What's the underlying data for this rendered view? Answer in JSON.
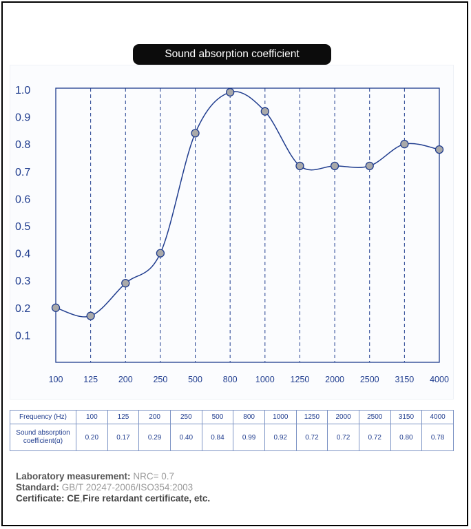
{
  "chart_data": {
    "type": "line",
    "title": "Sound absorption coefficient",
    "categories": [
      "100",
      "125",
      "200",
      "250",
      "500",
      "800",
      "1000",
      "1250",
      "2000",
      "2500",
      "3150",
      "4000"
    ],
    "values": [
      0.2,
      0.17,
      0.29,
      0.4,
      0.84,
      0.99,
      0.92,
      0.72,
      0.72,
      0.72,
      0.8,
      0.78
    ],
    "y_ticks": [
      "0.1",
      "0.2",
      "0.3",
      "0.4",
      "0.5",
      "0.6",
      "0.7",
      "0.8",
      "0.9",
      "1.0"
    ],
    "ylim": [
      0,
      1.0
    ],
    "xlabel": "",
    "ylabel": "",
    "grid": "vertical dashed",
    "colors": {
      "line": "#1f3c8e",
      "marker_fill": "#a9a9a9",
      "marker_stroke": "#1f3c8e",
      "title_bg": "#0c0c0c"
    }
  },
  "table": {
    "row1_header": "Frequency (Hz)",
    "row2_header_line1": "Sound absorption",
    "row2_header_line2": "coefficient(α)",
    "frequencies": [
      "100",
      "125",
      "200",
      "250",
      "500",
      "800",
      "1000",
      "1250",
      "2000",
      "2500",
      "3150",
      "4000"
    ],
    "coefficients": [
      "0.20",
      "0.17",
      "0.29",
      "0.40",
      "0.84",
      "0.99",
      "0.92",
      "0.72",
      "0.72",
      "0.72",
      "0.80",
      "0.78"
    ]
  },
  "footer": {
    "lab_label": "Laboratory measurement:",
    "lab_value": "NRC= 0.7",
    "std_label": "Standard:",
    "std_value": "GB/T 20247-2006/ISO354:2003",
    "cert_label": "Certificate:",
    "cert_value_1": "CE",
    "cert_sep": ",",
    "cert_value_2": "Fire retardant certificate, etc."
  }
}
